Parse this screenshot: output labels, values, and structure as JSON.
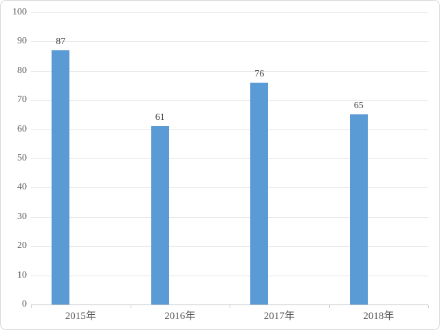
{
  "chart_data": {
    "type": "bar",
    "title": "",
    "xlabel": "",
    "ylabel": "",
    "categories": [
      "2015年",
      "2016年",
      "2017年",
      "2018年"
    ],
    "values": [
      87,
      61,
      76,
      65
    ],
    "value_labels": [
      "87",
      "61",
      "76",
      "65"
    ],
    "ylim": [
      0,
      100
    ],
    "ytick_interval": 10,
    "ytick_labels": [
      "0",
      "10",
      "20",
      "30",
      "40",
      "50",
      "60",
      "70",
      "80",
      "90",
      "100"
    ],
    "grid": true,
    "legend": null,
    "colors": {
      "bar": "#5b9bd5",
      "gridline": "#e3e3e3",
      "axis_line": "#c3c6ca",
      "axis_text": "#595959",
      "value_text": "#3f3f3f",
      "background": "#ffffff",
      "border": "#d7d7d7"
    }
  }
}
